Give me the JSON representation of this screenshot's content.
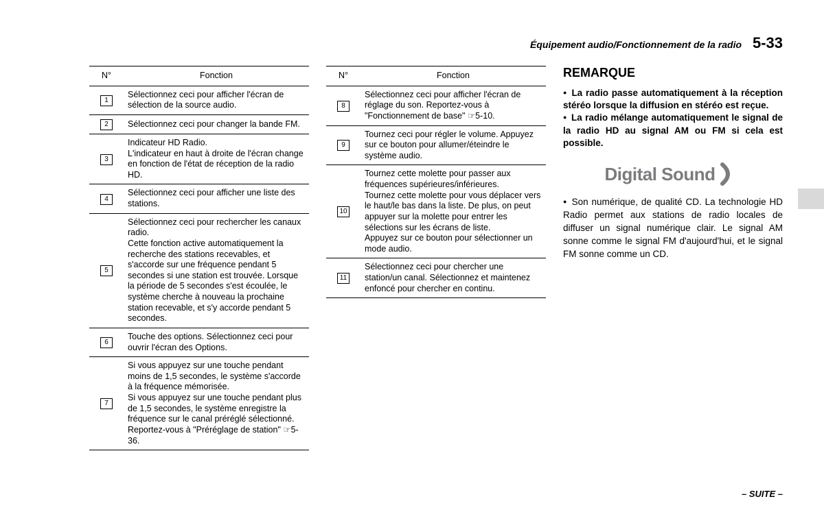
{
  "header": {
    "breadcrumb": "Équipement audio/Fonctionnement de la radio",
    "page_number": "5-33"
  },
  "table1": {
    "col_num": "N°",
    "col_func": "Fonction",
    "rows": [
      {
        "n": "1",
        "text": "Sélectionnez ceci pour afficher l'écran de sélection de la source audio."
      },
      {
        "n": "2",
        "text": "Sélectionnez ceci pour changer la bande FM."
      },
      {
        "n": "3",
        "text": "Indicateur HD Radio.\nL'indicateur en haut à droite de l'écran change en fonction de l'état de réception de la radio HD."
      },
      {
        "n": "4",
        "text": "Sélectionnez ceci pour afficher une liste des stations."
      },
      {
        "n": "5",
        "text": "Sélectionnez ceci pour rechercher les canaux radio.\nCette fonction active automatiquement la recherche des stations recevables, et s'accorde sur une fréquence pendant 5 secondes si une station est trouvée. Lorsque la période de 5 secondes s'est écoulée, le système cherche à nouveau la prochaine station recevable, et s'y accorde pendant 5 secondes."
      },
      {
        "n": "6",
        "text": "Touche des options. Sélectionnez ceci pour ouvrir l'écran des Options."
      },
      {
        "n": "7",
        "text": "Si vous appuyez sur une touche pendant moins de 1,5 secondes, le système s'accorde à la fréquence mémorisée.\nSi vous appuyez sur une touche pendant plus de 1,5 secondes, le système enregistre la fréquence sur le canal préréglé sélectionné. Reportez-vous à \"Préréglage de station\" ☞5-36."
      }
    ]
  },
  "table2": {
    "col_num": "N°",
    "col_func": "Fonction",
    "rows": [
      {
        "n": "8",
        "text": "Sélectionnez ceci pour afficher l'écran de réglage du son. Reportez-vous à \"Fonctionnement de base\" ☞5-10."
      },
      {
        "n": "9",
        "text": "Tournez ceci pour régler le volume. Appuyez sur ce bouton pour allumer/éteindre le système audio."
      },
      {
        "n": "10",
        "text": "Tournez cette molette pour passer aux fréquences supérieures/inférieures.\nTournez cette molette pour vous déplacer vers le haut/le bas dans la liste. De plus, on peut appuyer sur la molette pour entrer les sélections sur les écrans de liste.\nAppuyez sur ce bouton pour sélectionner un mode audio."
      },
      {
        "n": "11",
        "text": "Sélectionnez ceci pour chercher une station/un canal. Sélectionnez et maintenez enfoncé pour chercher en continu."
      }
    ]
  },
  "remark": {
    "title": "REMARQUE",
    "b1": "La radio passe automatiquement à la réception stéréo lorsque la diffusion en stéréo est reçue.",
    "b2": "La radio mélange automatiquement le signal de la radio HD au signal AM ou FM si cela est possible."
  },
  "logo": {
    "text": "Digital Sound",
    "color": "#7a7c80"
  },
  "paragraph": {
    "text": "Son numérique, de qualité CD. La technologie HD Radio permet aux stations de radio locales de diffuser un signal numérique clair. Le signal AM sonne comme le signal FM d'aujourd'hui, et le signal FM sonne comme un CD."
  },
  "footer": "– SUITE –"
}
